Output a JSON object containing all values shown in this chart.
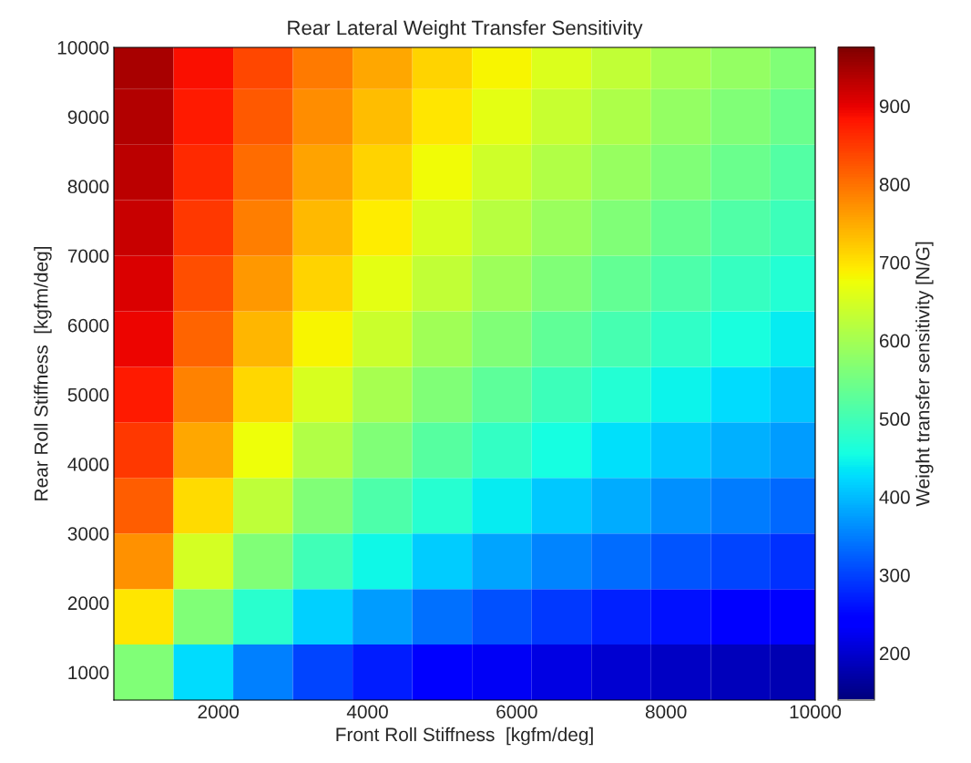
{
  "chart_data": {
    "type": "heatmap",
    "title": "Rear Lateral Weight Transfer Sensitivity",
    "xlabel": "Front Roll Stiffness  [kgfm/deg]",
    "ylabel": "Rear Roll Stiffness  [kgfm/deg]",
    "clabel": "Weight transfer sensitivity [N/G]",
    "x": [
      1000,
      1800,
      2600,
      3400,
      4200,
      5000,
      5800,
      6600,
      7400,
      8200,
      9000,
      9800
    ],
    "y": [
      9800,
      9000,
      8200,
      7400,
      6600,
      5800,
      5000,
      4200,
      3400,
      2600,
      1800,
      1000
    ],
    "cells": [
      [
        945,
        886,
        835,
        790,
        750,
        714,
        682,
        653,
        626,
        603,
        581,
        561
      ],
      [
        939,
        875,
        821,
        774,
        732,
        696,
        663,
        633,
        607,
        582,
        561,
        540
      ],
      [
        930,
        863,
        805,
        756,
        713,
        675,
        641,
        612,
        585,
        561,
        538,
        518
      ],
      [
        921,
        848,
        787,
        736,
        691,
        652,
        618,
        588,
        561,
        536,
        514,
        495
      ],
      [
        909,
        830,
        766,
        712,
        665,
        626,
        591,
        561,
        533,
        509,
        488,
        468
      ],
      [
        894,
        809,
        740,
        684,
        636,
        595,
        561,
        530,
        503,
        480,
        458,
        439
      ],
      [
        875,
        783,
        710,
        650,
        601,
        561,
        525,
        495,
        469,
        446,
        425,
        407
      ],
      [
        851,
        750,
        672,
        610,
        561,
        519,
        485,
        455,
        430,
        408,
        389,
        372
      ],
      [
        818,
        706,
        623,
        561,
        511,
        471,
        437,
        409,
        385,
        365,
        347,
        331
      ],
      [
        771,
        646,
        561,
        497,
        449,
        411,
        380,
        355,
        334,
        316,
        300,
        286
      ],
      [
        696,
        561,
        475,
        415,
        372,
        338,
        312,
        291,
        273,
        258,
        246,
        235
      ],
      [
        561,
        425,
        350,
        303,
        270,
        246,
        227,
        212,
        200,
        191,
        183,
        176
      ]
    ],
    "xlim": [
      600,
      10000
    ],
    "ylim": [
      600,
      10000
    ],
    "xticks": [
      2000,
      4000,
      6000,
      8000,
      10000
    ],
    "yticks": [
      1000,
      2000,
      3000,
      4000,
      5000,
      6000,
      7000,
      8000,
      9000,
      10000
    ],
    "clim": [
      140,
      975
    ],
    "cticks": [
      200,
      300,
      400,
      500,
      600,
      700,
      800,
      900
    ]
  }
}
